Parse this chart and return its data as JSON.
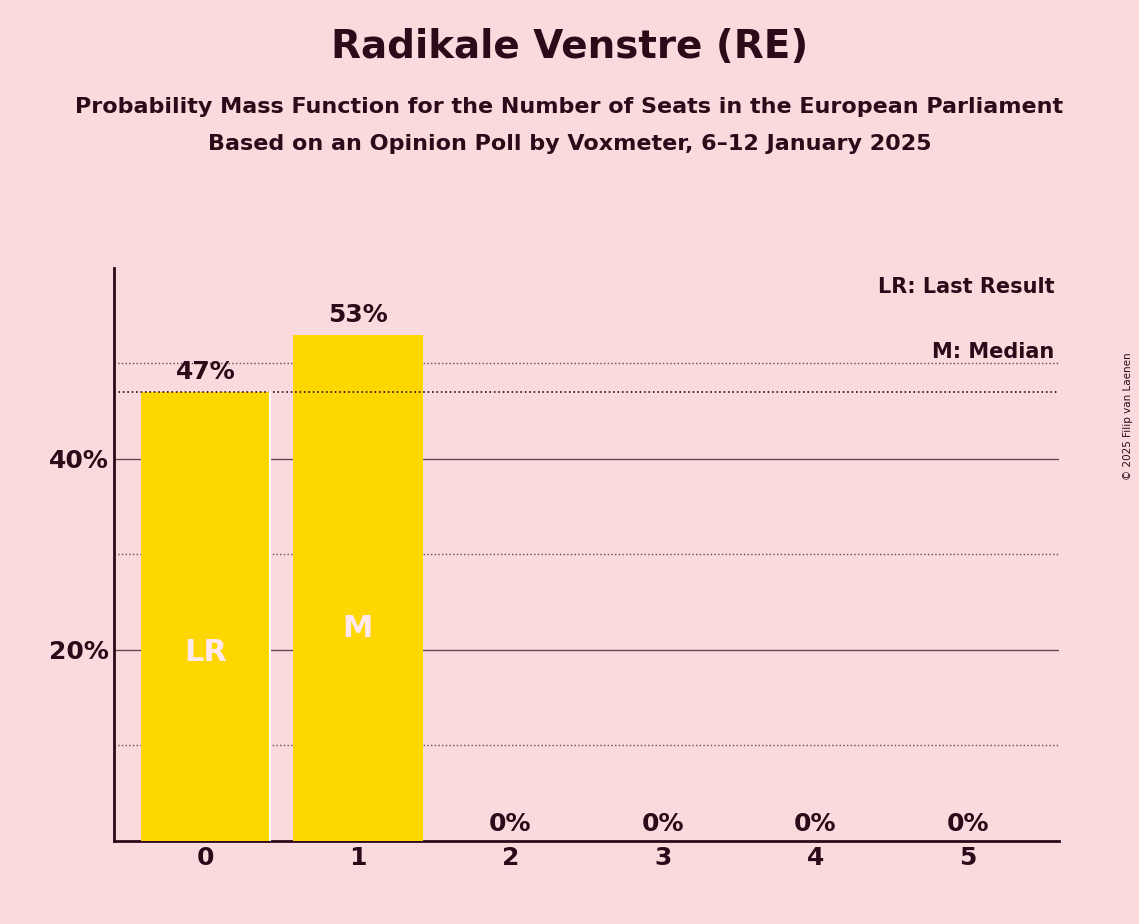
{
  "title": "Radikale Venstre (RE)",
  "subtitle1": "Probability Mass Function for the Number of Seats in the European Parliament",
  "subtitle2": "Based on an Opinion Poll by Voxmeter, 6–12 January 2025",
  "copyright": "© 2025 Filip van Laenen",
  "categories": [
    0,
    1,
    2,
    3,
    4,
    5
  ],
  "values": [
    0.47,
    0.53,
    0.0,
    0.0,
    0.0,
    0.0
  ],
  "bar_color": "#FFD700",
  "background_color": "#FADADD",
  "bar_labels": [
    "47%",
    "53%",
    "0%",
    "0%",
    "0%",
    "0%"
  ],
  "last_result_seat": 0,
  "median_seat": 1,
  "lr_label": "LR",
  "m_label": "M",
  "label_color": "#FFE8F0",
  "legend_lr": "LR: Last Result",
  "legend_m": "M: Median",
  "ylim": [
    0,
    0.6
  ],
  "title_fontsize": 28,
  "subtitle_fontsize": 16,
  "text_color": "#2D0A1A",
  "bar_label_fontsize": 18,
  "axis_label_fontsize": 18,
  "bar_width": 0.85,
  "dotted_line_y": 0.47,
  "solid_gridlines": [
    0.2,
    0.4
  ],
  "dotted_gridlines": [
    0.1,
    0.3,
    0.5
  ],
  "lr_line_color": "#FFFFFF",
  "inside_label_fontsize": 22
}
